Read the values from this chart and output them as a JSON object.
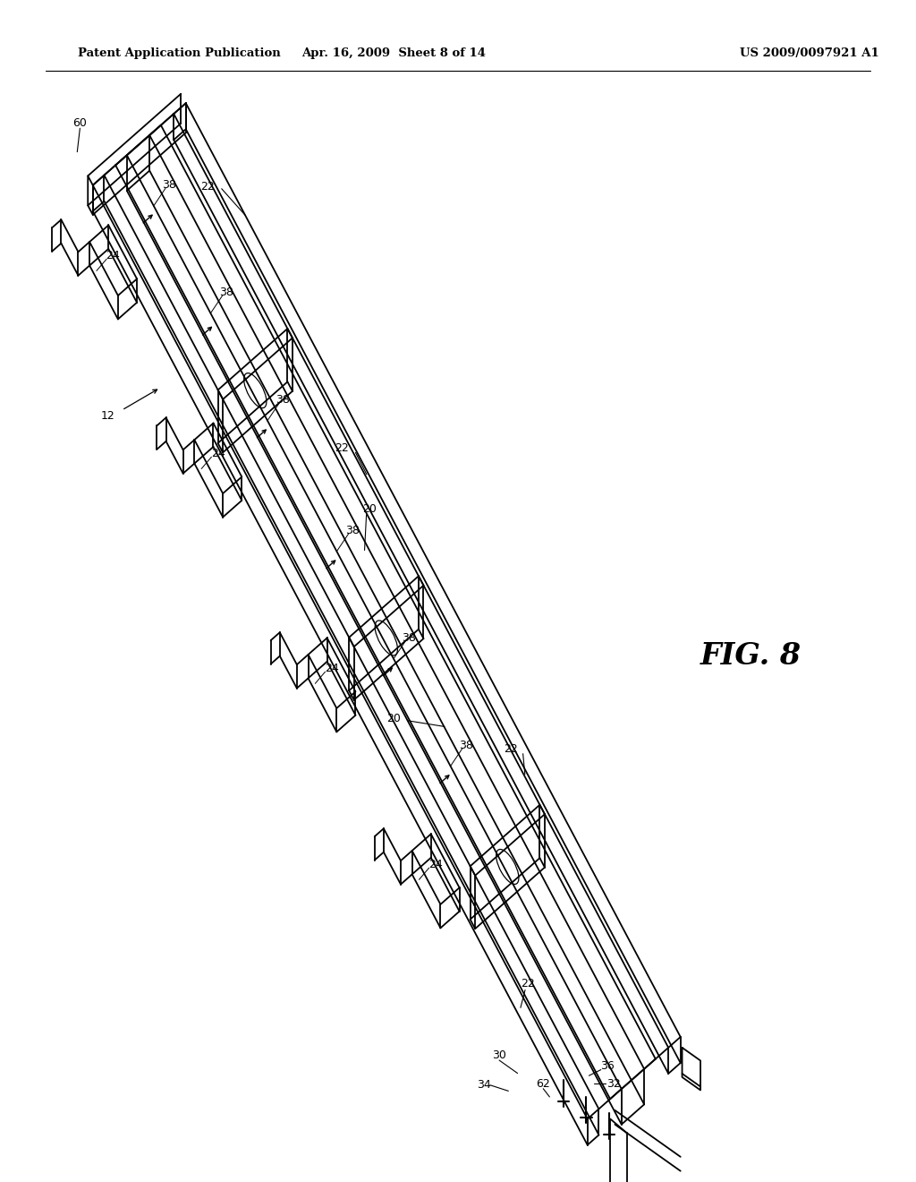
{
  "background_color": "#ffffff",
  "header_left": "Patent Application Publication",
  "header_center": "Apr. 16, 2009  Sheet 8 of 14",
  "header_right": "US 2009/0097921 A1",
  "figure_label": "FIG. 8",
  "line_color": "#000000",
  "lw_main": 1.3,
  "lw_thin": 0.9,
  "label_fontsize": 9.0,
  "header_fontsize": 9.5,
  "fig8_fontsize": 24
}
